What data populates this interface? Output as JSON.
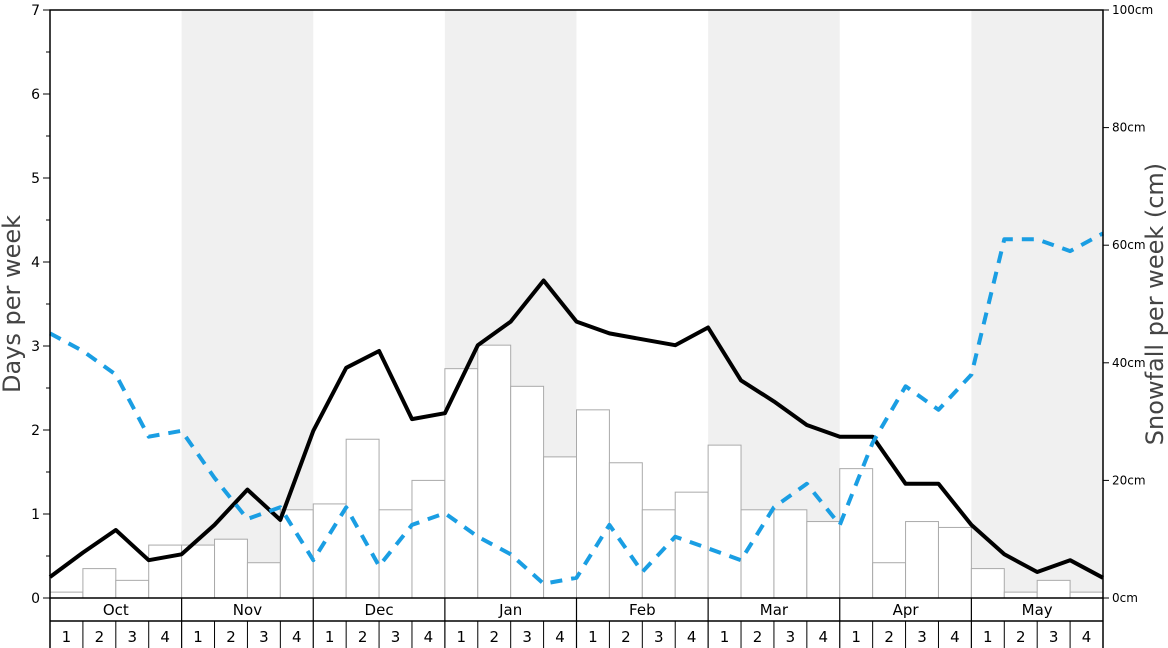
{
  "chart_data": {
    "type": "bar+line",
    "ylabel_left": "Days per week",
    "ylabel_right": "Snowfall per week (cm)",
    "ylim_left": [
      0,
      7
    ],
    "ylim_right": [
      0,
      100
    ],
    "left_ticks": [
      "0",
      "1",
      "2",
      "3",
      "4",
      "5",
      "6",
      "7"
    ],
    "right_ticks": [
      "0cm",
      "20cm",
      "40cm",
      "60cm",
      "80cm",
      "100cm"
    ],
    "months": [
      "Oct",
      "Nov",
      "Dec",
      "Jan",
      "Feb",
      "Mar",
      "Apr",
      "May"
    ],
    "weeks": [
      "1",
      "2",
      "3",
      "4"
    ],
    "colors": {
      "snow_days": "#000000",
      "sunny_days": "#1a9ee3",
      "snowfall_bar_edge": "#aaaaaa",
      "band": "#f0f0f0"
    },
    "series": [
      {
        "axis": "right",
        "type": "bar",
        "values": [
          1,
          5,
          3,
          9,
          9,
          10,
          6,
          15,
          16,
          27,
          15,
          20,
          39,
          43,
          36,
          24,
          32,
          23,
          15,
          18,
          26,
          15,
          15,
          13,
          22,
          6,
          13,
          12,
          5,
          1,
          3,
          1
        ]
      },
      {
        "axis": "left",
        "type": "line",
        "values": [
          0.25,
          0.54,
          0.81,
          0.45,
          0.52,
          0.87,
          1.29,
          0.93,
          1.99,
          2.74,
          2.94,
          2.13,
          2.2,
          3.01,
          3.29,
          3.78,
          3.29,
          3.15,
          3.08,
          3.01,
          3.22,
          2.59,
          2.34,
          2.06,
          1.92,
          1.92,
          1.36,
          1.36,
          0.87,
          0.52,
          0.31,
          0.45,
          0.24
        ]
      },
      {
        "axis": "left",
        "type": "line",
        "style": "dashed",
        "values": [
          3.15,
          2.94,
          2.66,
          1.92,
          1.99,
          1.43,
          0.94,
          1.08,
          0.45,
          1.08,
          0.38,
          0.87,
          1.01,
          0.73,
          0.52,
          0.17,
          0.24,
          0.87,
          0.31,
          0.73,
          0.59,
          0.45,
          1.08,
          1.36,
          0.87,
          1.85,
          2.52,
          2.24,
          2.66,
          4.27,
          4.27,
          4.13,
          4.34
        ]
      }
    ]
  }
}
